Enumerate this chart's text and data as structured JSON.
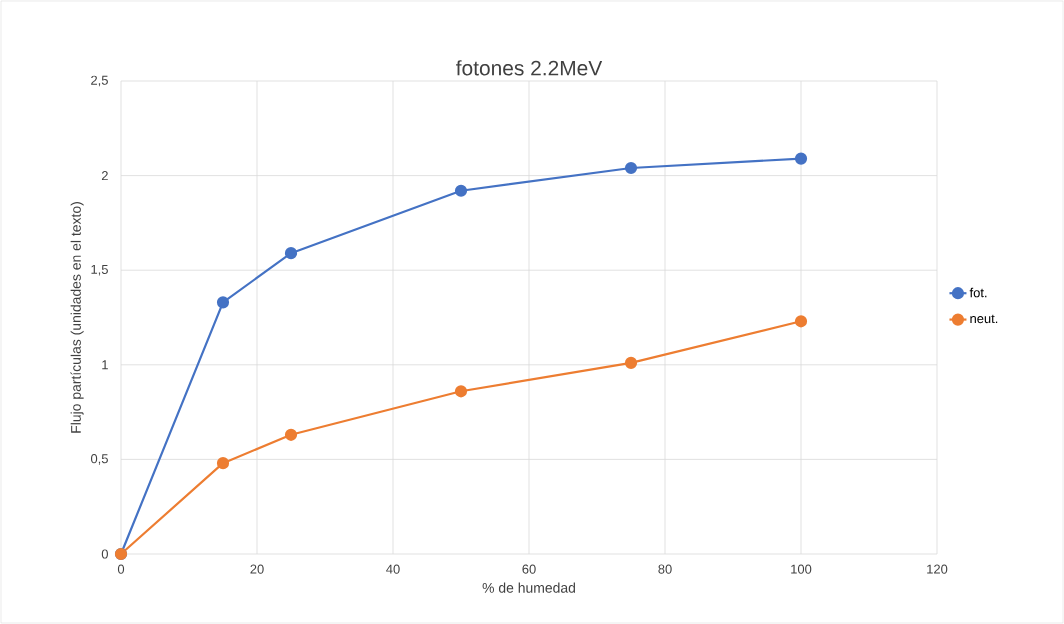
{
  "chart_data": {
    "type": "line",
    "title": "fotones 2.2MeV",
    "xlabel": "% de humedad",
    "ylabel": "Flujo partículas (unidades en el texto)",
    "x": [
      0,
      15,
      25,
      50,
      75,
      100
    ],
    "series": [
      {
        "name": "fot.",
        "color": "#4472c4",
        "values": [
          0,
          1.33,
          1.59,
          1.92,
          2.04,
          2.09
        ]
      },
      {
        "name": "neut.",
        "color": "#ed7d31",
        "values": [
          0,
          0.48,
          0.63,
          0.86,
          1.01,
          1.23
        ]
      }
    ],
    "xlim": [
      0,
      120
    ],
    "xticks": [
      0,
      20,
      40,
      60,
      80,
      100,
      120
    ],
    "ylim": [
      0,
      2.5
    ],
    "yticks": [
      0,
      {
        "value": 0.5,
        "label": "0,5"
      },
      1,
      {
        "value": 1.5,
        "label": "1,5"
      },
      2,
      {
        "value": 2.5,
        "label": "2,5"
      }
    ],
    "grid": true,
    "legend": "right",
    "marker": "circle",
    "line_style": "solid"
  }
}
